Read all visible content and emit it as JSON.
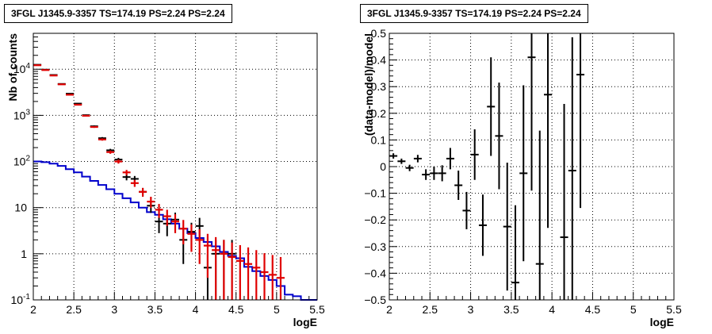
{
  "chart_data": [
    {
      "type": "line",
      "title": "3FGL J1345.9-3357 TS=174.19 PS=2.24 PS=2.24",
      "xlabel": "logE",
      "ylabel": "Nb of counts",
      "xlim": [
        2,
        5.5
      ],
      "ylim": [
        0.1,
        60000
      ],
      "yscale": "log",
      "grid": true,
      "xticks": [
        "2",
        "2.5",
        "3",
        "3.5",
        "4",
        "4.5",
        "5",
        "5.5"
      ],
      "yticks": [
        {
          "value": 0.1,
          "label": "10^-1"
        },
        {
          "value": 1,
          "label": "1"
        },
        {
          "value": 10,
          "label": "10"
        },
        {
          "value": 100,
          "label": "10^2"
        },
        {
          "value": 1000,
          "label": "10^3"
        },
        {
          "value": 10000,
          "label": "10^4"
        }
      ],
      "series": [
        {
          "kind": "points",
          "color": "#000000",
          "x": [
            2.05,
            2.15,
            2.25,
            2.35,
            2.45,
            2.55,
            2.65,
            2.75,
            2.85,
            2.95,
            3.05,
            3.15,
            3.25,
            3.35,
            3.45,
            3.55,
            3.65,
            3.75,
            3.85,
            3.95,
            4.05,
            4.15,
            4.25,
            4.35,
            4.45
          ],
          "y": [
            12500,
            9800,
            7500,
            4800,
            2950,
            1800,
            1010,
            580,
            320,
            175,
            110,
            46,
            42,
            22,
            11,
            5,
            4.5,
            5.5,
            2,
            3,
            4,
            0.5,
            1,
            1,
            1
          ],
          "err": [
            110,
            100,
            85,
            70,
            55,
            42,
            32,
            24,
            18,
            13,
            10,
            7,
            6.5,
            4.7,
            3.3,
            2.2,
            2.1,
            2.3,
            1.4,
            1.7,
            2,
            0.5,
            1,
            1,
            1
          ]
        },
        {
          "kind": "points",
          "color": "#e00000",
          "x": [
            2.05,
            2.15,
            2.25,
            2.35,
            2.45,
            2.55,
            2.65,
            2.75,
            2.85,
            2.95,
            3.05,
            3.15,
            3.25,
            3.35,
            3.45,
            3.55,
            3.65,
            3.75,
            3.85,
            3.95,
            4.05,
            4.15,
            4.25,
            4.35,
            4.45,
            4.55,
            4.65,
            4.75,
            4.85,
            4.95,
            5.05
          ],
          "y": [
            12200,
            9600,
            7300,
            4700,
            2800,
            1700,
            980,
            560,
            300,
            160,
            100,
            58,
            34,
            22,
            13.5,
            9,
            6.5,
            5,
            3.5,
            2.7,
            2,
            1.5,
            1.2,
            1,
            0.85,
            0.7,
            0.6,
            0.5,
            0.4,
            0.35,
            0.3
          ],
          "err": [
            110,
            98,
            85,
            69,
            53,
            41,
            31,
            24,
            17,
            13,
            10,
            7.6,
            5.8,
            4.7,
            3.7,
            3,
            2.5,
            2.2,
            1.9,
            1.6,
            1.4,
            1.2,
            1.1,
            1,
            0.9,
            0.84,
            0.77,
            0.7,
            0.63,
            0.59,
            0.55
          ]
        },
        {
          "kind": "step",
          "color": "#0000cc",
          "edges": [
            2,
            2.1,
            2.2,
            2.3,
            2.4,
            2.5,
            2.6,
            2.7,
            2.8,
            2.9,
            3.0,
            3.1,
            3.2,
            3.3,
            3.4,
            3.5,
            3.6,
            3.7,
            3.8,
            3.9,
            4.0,
            4.1,
            4.2,
            4.3,
            4.4,
            4.5,
            4.6,
            4.7,
            4.8,
            4.9,
            5.0,
            5.1,
            5.2,
            5.3,
            5.4,
            5.5
          ],
          "values": [
            100,
            97,
            90,
            80,
            68,
            58,
            47,
            38,
            31,
            25,
            20,
            16,
            13,
            10,
            8,
            7,
            5.6,
            4.5,
            3.5,
            2.8,
            2.2,
            1.8,
            1.45,
            1.1,
            0.9,
            0.8,
            0.52,
            0.42,
            0.33,
            0.27,
            0.2,
            0.13,
            0.12,
            0.1,
            0.1
          ]
        }
      ]
    },
    {
      "type": "scatter",
      "title": "3FGL J1345.9-3357 TS=174.19 PS=2.24 PS=2.24",
      "xlabel": "logE",
      "ylabel": "(data-model)/model",
      "xlim": [
        2,
        5.5
      ],
      "ylim": [
        -0.5,
        0.5
      ],
      "grid": true,
      "xticks": [
        "2",
        "2.5",
        "3",
        "3.5",
        "4",
        "4.5",
        "5",
        "5.5"
      ],
      "yticks": [
        "0.5",
        "0.4",
        "0.3",
        "0.2",
        "0.1",
        "0",
        "-0.1",
        "-0.2",
        "-0.3",
        "-0.4",
        "-0.5"
      ],
      "series": [
        {
          "color": "#000000",
          "x": [
            2.05,
            2.15,
            2.25,
            2.35,
            2.45,
            2.55,
            2.65,
            2.75,
            2.85,
            2.95,
            3.05,
            3.15,
            3.25,
            3.35,
            3.45,
            3.55,
            3.65,
            3.75,
            3.85,
            3.95,
            4.15,
            4.25,
            4.35
          ],
          "y": [
            0.04,
            0.02,
            -0.005,
            0.03,
            -0.03,
            -0.025,
            -0.025,
            0.03,
            -0.07,
            -0.165,
            0.045,
            -0.22,
            0.225,
            0.115,
            -0.225,
            -0.435,
            -0.025,
            0.41,
            -0.365,
            0.27,
            -0.265,
            -0.015,
            0.345
          ],
          "err": [
            0.01,
            0.01,
            0.012,
            0.014,
            0.02,
            0.025,
            0.03,
            0.04,
            0.055,
            0.07,
            0.095,
            0.115,
            0.185,
            0.2,
            0.24,
            0.29,
            0.33,
            0.5,
            0.5,
            0.5,
            0.5,
            0.5,
            0.5
          ]
        }
      ]
    }
  ]
}
